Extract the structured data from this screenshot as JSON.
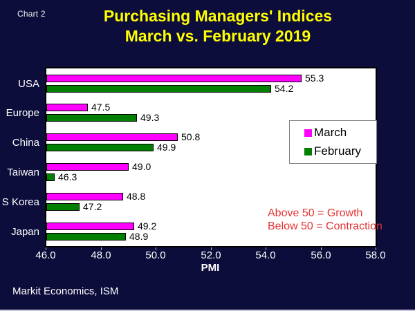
{
  "chart_label": "Chart 2",
  "title": "Purchasing Managers' Indices",
  "subtitle": "March vs. February 2019",
  "footer": "Markit Economics, ISM",
  "annotation": {
    "line1": "Above 50 = Growth",
    "line2": "Below 50 = Contraction"
  },
  "legend": [
    {
      "label": "March",
      "color": "#ff00ff"
    },
    {
      "label": "February",
      "color": "#008000"
    }
  ],
  "colors": {
    "background": "#0d0d3c",
    "title": "#ffff00",
    "annotation": "#e63232",
    "march": "#ff00ff",
    "february": "#008000",
    "plot_background": "#ffffff"
  },
  "chart_data": {
    "type": "bar",
    "orientation": "horizontal",
    "title": "Purchasing Managers' Indices — March vs. February 2019",
    "categories": [
      "USA",
      "Europe",
      "China",
      "Taiwan",
      "S Korea",
      "Japan"
    ],
    "series": [
      {
        "name": "March",
        "color": "#ff00ff",
        "values": [
          55.3,
          47.5,
          50.8,
          49.0,
          48.8,
          49.2
        ]
      },
      {
        "name": "February",
        "color": "#008000",
        "values": [
          54.2,
          49.3,
          49.9,
          46.3,
          47.2,
          48.9
        ]
      }
    ],
    "xlabel": "PMI",
    "xlim": [
      46.0,
      58.0
    ],
    "xticks": [
      "46.0",
      "48.0",
      "50.0",
      "52.0",
      "54.0",
      "56.0",
      "58.0"
    ],
    "value_labels": true,
    "grid": false,
    "legend_position": "inside-right"
  }
}
